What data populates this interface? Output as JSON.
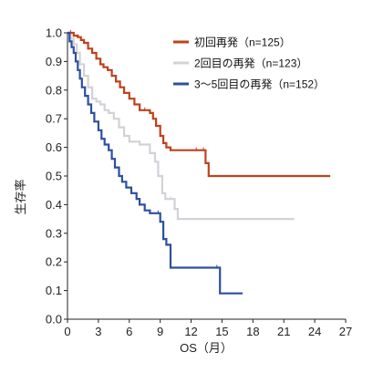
{
  "chart_data": {
    "type": "line",
    "subtype": "kaplan-meier-step",
    "title": "",
    "xlabel": "OS（月）",
    "ylabel": "生存率",
    "xlim": [
      0,
      27
    ],
    "ylim": [
      0,
      1
    ],
    "x_ticks": [
      "0",
      "3",
      "6",
      "9",
      "12",
      "15",
      "18",
      "21",
      "24",
      "27"
    ],
    "y_ticks": [
      "0.0",
      "0.1",
      "0.2",
      "0.3",
      "0.4",
      "0.5",
      "0.6",
      "0.7",
      "0.8",
      "0.9",
      "1.0"
    ],
    "grid": false,
    "legend_position": "top-right",
    "series": [
      {
        "name": "初回再発（n=125）",
        "color": "#c0411d",
        "points": [
          [
            0,
            1.0
          ],
          [
            0.3,
            1.0
          ],
          [
            0.6,
            0.99
          ],
          [
            1.0,
            0.985
          ],
          [
            1.3,
            0.975
          ],
          [
            1.6,
            0.965
          ],
          [
            2.0,
            0.945
          ],
          [
            2.4,
            0.93
          ],
          [
            2.8,
            0.91
          ],
          [
            3.2,
            0.89
          ],
          [
            3.5,
            0.88
          ],
          [
            3.9,
            0.87
          ],
          [
            4.3,
            0.85
          ],
          [
            4.7,
            0.83
          ],
          [
            5.1,
            0.81
          ],
          [
            5.5,
            0.79
          ],
          [
            6.0,
            0.77
          ],
          [
            6.5,
            0.75
          ],
          [
            7.0,
            0.73
          ],
          [
            7.5,
            0.73
          ],
          [
            8.0,
            0.72
          ],
          [
            8.3,
            0.7
          ],
          [
            8.6,
            0.675
          ],
          [
            9.0,
            0.64
          ],
          [
            9.3,
            0.615
          ],
          [
            9.6,
            0.6
          ],
          [
            10.0,
            0.59
          ],
          [
            12.5,
            0.59
          ],
          [
            13.2,
            0.59
          ],
          [
            13.4,
            0.545
          ],
          [
            13.7,
            0.5
          ],
          [
            25.5,
            0.5
          ]
        ]
      },
      {
        "name": "2回目の再発（n=123）",
        "color": "#d2d2d7",
        "points": [
          [
            0,
            1.0
          ],
          [
            0.3,
            0.98
          ],
          [
            0.6,
            0.96
          ],
          [
            0.9,
            0.93
          ],
          [
            1.2,
            0.89
          ],
          [
            1.6,
            0.85
          ],
          [
            2.0,
            0.81
          ],
          [
            2.4,
            0.77
          ],
          [
            2.8,
            0.76
          ],
          [
            3.2,
            0.75
          ],
          [
            3.6,
            0.73
          ],
          [
            4.0,
            0.72
          ],
          [
            4.5,
            0.7
          ],
          [
            5.0,
            0.67
          ],
          [
            5.5,
            0.64
          ],
          [
            6.0,
            0.62
          ],
          [
            7.0,
            0.61
          ],
          [
            8.0,
            0.58
          ],
          [
            8.5,
            0.55
          ],
          [
            8.8,
            0.5
          ],
          [
            9.2,
            0.44
          ],
          [
            9.5,
            0.42
          ],
          [
            10.0,
            0.42
          ],
          [
            10.4,
            0.385
          ],
          [
            10.7,
            0.35
          ],
          [
            22,
            0.35
          ]
        ]
      },
      {
        "name": "3～5回目の再発（n=152）",
        "color": "#2e4f9f",
        "points": [
          [
            0,
            1.0
          ],
          [
            0.2,
            0.97
          ],
          [
            0.4,
            0.95
          ],
          [
            0.6,
            0.93
          ],
          [
            0.8,
            0.9
          ],
          [
            1.0,
            0.87
          ],
          [
            1.2,
            0.84
          ],
          [
            1.4,
            0.81
          ],
          [
            1.7,
            0.78
          ],
          [
            2.0,
            0.75
          ],
          [
            2.3,
            0.72
          ],
          [
            2.6,
            0.69
          ],
          [
            3.0,
            0.66
          ],
          [
            3.3,
            0.63
          ],
          [
            3.6,
            0.61
          ],
          [
            4.0,
            0.59
          ],
          [
            4.3,
            0.56
          ],
          [
            4.6,
            0.53
          ],
          [
            5.0,
            0.5
          ],
          [
            5.3,
            0.48
          ],
          [
            5.7,
            0.46
          ],
          [
            6.2,
            0.44
          ],
          [
            6.7,
            0.42
          ],
          [
            7.0,
            0.4
          ],
          [
            7.5,
            0.38
          ],
          [
            8.0,
            0.37
          ],
          [
            8.8,
            0.37
          ],
          [
            9.0,
            0.34
          ],
          [
            9.3,
            0.28
          ],
          [
            9.6,
            0.26
          ],
          [
            10.0,
            0.18
          ],
          [
            14.5,
            0.18
          ],
          [
            14.8,
            0.09
          ],
          [
            17,
            0.09
          ]
        ]
      }
    ]
  }
}
